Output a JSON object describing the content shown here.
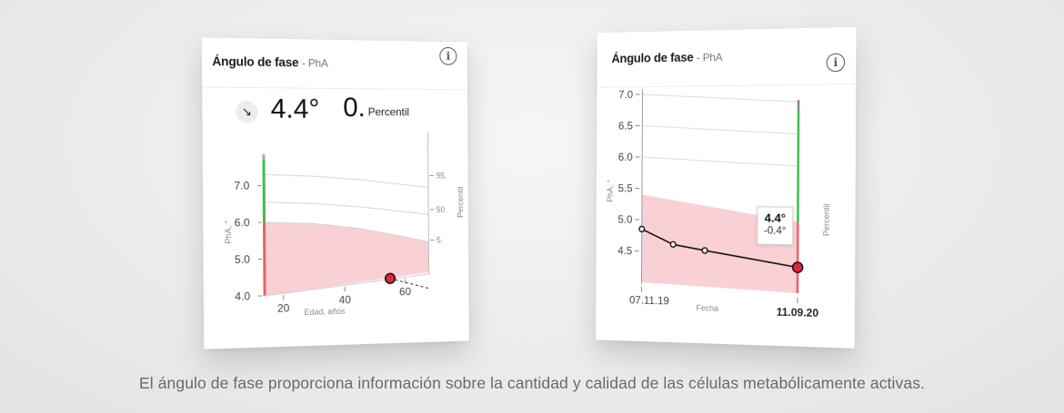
{
  "left_card": {
    "title": "Ángulo de fase",
    "title_sub": "- PhA",
    "value": "4.4°",
    "percentile_value": "0.",
    "percentile_label": "Percentil",
    "trend_icon": "arrow-down-right-icon",
    "info_icon": "info-icon"
  },
  "right_card": {
    "title": "Ángulo de fase",
    "title_sub": "- PhA",
    "info_icon": "info-icon",
    "tooltip_value": "4.4°",
    "tooltip_delta": "-0.4°"
  },
  "caption": "El ángulo de fase proporciona información sobre la cantidad y calidad de las células metabólicamente activas.",
  "chart_data": [
    {
      "type": "line",
      "title": "",
      "xlabel": "Edad, años",
      "ylabel": "PhA, °",
      "y2label": "Percentil",
      "xlim": [
        14,
        68
      ],
      "ylim": [
        4.0,
        8.0
      ],
      "x_ticks": [
        20,
        40,
        60
      ],
      "y_ticks": [
        4.0,
        5.0,
        6.0,
        7.0
      ],
      "y_tick_labels": [
        "4.0",
        "5.0",
        "6.0",
        "7.0"
      ],
      "percentile_labels": [
        "95.",
        "50.",
        "5."
      ],
      "series": [
        {
          "values_x": [
            14,
            30,
            45,
            60,
            68
          ],
          "values_y": [
            7.3,
            7.25,
            7.15,
            7.0,
            6.92
          ]
        },
        {
          "values_x": [
            14,
            30,
            45,
            60,
            68
          ],
          "values_y": [
            6.55,
            6.5,
            6.4,
            6.25,
            6.17
          ]
        },
        {
          "values_x": [
            14,
            30,
            45,
            60,
            68
          ],
          "values_y": [
            6.0,
            5.95,
            5.8,
            5.55,
            5.4
          ]
        }
      ],
      "point": {
        "x": 55,
        "y": 4.4
      },
      "colors": {
        "low_band": "#f9d1d4",
        "green": "#3dbf4a",
        "red": "#e8626b",
        "point": "#e2253a"
      }
    },
    {
      "type": "line",
      "title": "",
      "xlabel": "Fecha",
      "ylabel": "PhA, °",
      "y2label": "Percentil",
      "ylim": [
        4.0,
        7.0
      ],
      "y_ticks": [
        4.5,
        5.0,
        5.5,
        6.0,
        6.5,
        7.0
      ],
      "y_tick_labels": [
        "4.5",
        "5.0",
        "5.5",
        "6.0",
        "6.5",
        "7.0"
      ],
      "x_tick_labels": [
        "07.11.19",
        "11.09.20"
      ],
      "x": [
        "07.11.19",
        "",
        "",
        "11.09.20"
      ],
      "values": [
        4.85,
        4.65,
        4.6,
        4.4
      ],
      "band_top": [
        5.4,
        5.1
      ],
      "colors": {
        "low_band": "#f9d1d4",
        "green": "#3dbf4a",
        "red": "#e8626b",
        "point": "#e2253a",
        "line": "#111111"
      }
    }
  ]
}
